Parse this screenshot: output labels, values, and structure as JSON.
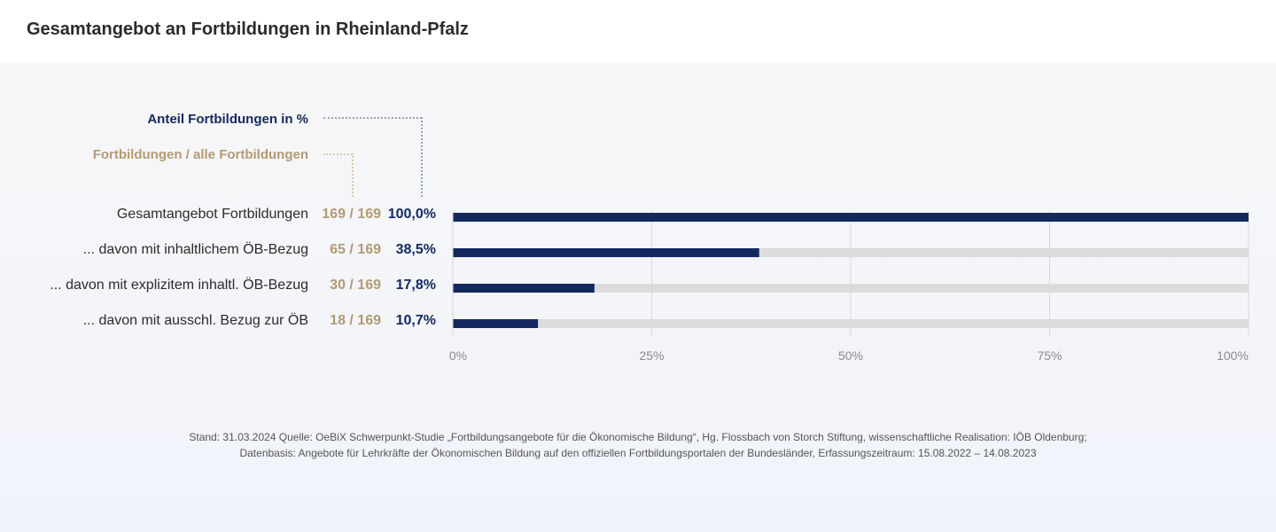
{
  "title": "Gesamtangebot an Fortbildungen in Rheinland-Pfalz",
  "legend": {
    "percent_label": "Anteil Fortbildungen  in %",
    "count_label": "Fortbildungen / alle Fortbildungen"
  },
  "colors": {
    "bar": "#13295e",
    "track": "#dcdcdc",
    "count": "#b39a72",
    "percent": "#13295e",
    "grid": "#d8d8dc"
  },
  "chart_data": {
    "type": "bar",
    "orientation": "horizontal",
    "categories": [
      "Gesamtangebot Fortbildungen",
      "... davon mit inhaltlichem ÖB-Bezug",
      "... davon mit explizitem inhaltl. ÖB-Bezug",
      "... davon mit ausschl. Bezug zur ÖB"
    ],
    "counts": [
      "169 / 169",
      "65 / 169",
      "30 / 169",
      "18 / 169"
    ],
    "percent_labels": [
      "100,0%",
      "38,5%",
      "17,8%",
      "10,7%"
    ],
    "values": [
      100.0,
      38.5,
      17.8,
      10.7
    ],
    "xlim": [
      0,
      100
    ],
    "xticks": [
      0,
      25,
      50,
      75,
      100
    ],
    "xtick_labels": [
      "0%",
      "25%",
      "50%",
      "75%",
      "100%"
    ],
    "grid": true
  },
  "footer": [
    "Stand: 31.03.2024 Quelle: OeBiX Schwerpunkt-Studie „Fortbildungsangebote für die Ökonomische Bildung“, Hg. Flossbach von Storch Stiftung, wissenschaftliche Realisation: IÖB Oldenburg;",
    "Datenbasis: Angebote für Lehrkräfte der Ökonomischen Bildung auf den offiziellen Fortbildungsportalen der Bundesländer, Erfassungszeitraum: 15.08.2022 – 14.08.2023"
  ]
}
